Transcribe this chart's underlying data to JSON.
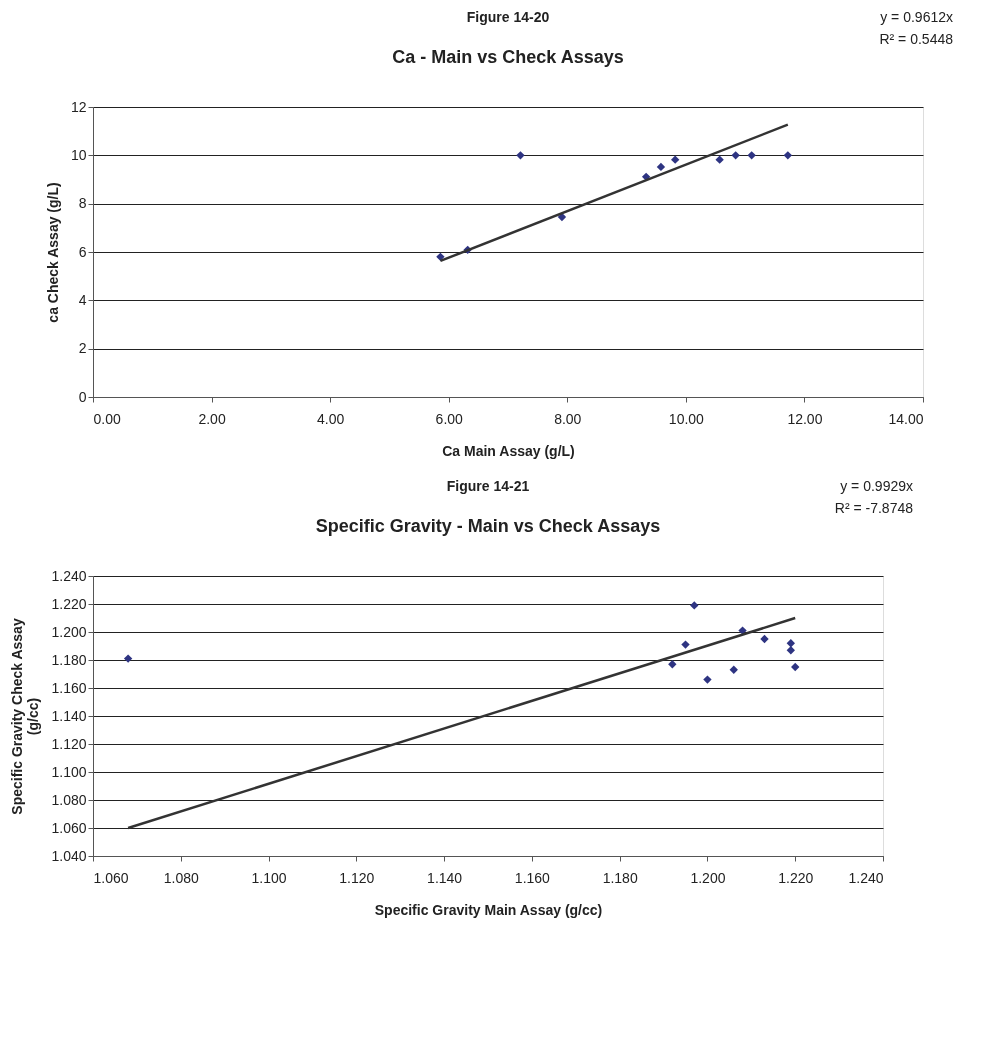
{
  "chart_data": [
    {
      "type": "scatter",
      "title": "Ca - Main vs Check Assays",
      "xlabel": "Ca Main Assay (g/L)",
      "ylabel": "ca Check Assay (g/L)",
      "annotations": [
        "Figure 14-20",
        "y = 0.9612x",
        "R² = 0.5448"
      ],
      "series": [
        {
          "marker": "diamond",
          "color": "#2e3482",
          "x": [
            7.21,
            9.33,
            9.58,
            9.82,
            10.57,
            10.84,
            11.11,
            11.72,
            5.86,
            6.32,
            7.91
          ],
          "values": [
            10.0,
            9.11,
            9.52,
            9.82,
            9.82,
            10.0,
            10.0,
            10.0,
            5.8,
            6.09,
            7.45
          ]
        },
        {
          "type": "line",
          "color": "#333333",
          "x": [
            5.86,
            11.72
          ],
          "values": [
            5.63,
            11.27
          ]
        }
      ],
      "xlim": [
        0,
        14
      ],
      "ylim": [
        0,
        12
      ],
      "xticks": [
        {
          "value": 0,
          "label": "0.00"
        },
        {
          "value": 2,
          "label": "2.00"
        },
        {
          "value": 4,
          "label": "4.00"
        },
        {
          "value": 6,
          "label": "6.00"
        },
        {
          "value": 8,
          "label": "8.00"
        },
        {
          "value": 10,
          "label": "10.00"
        },
        {
          "value": 12,
          "label": "12.00"
        },
        {
          "value": 14,
          "label": "14.00"
        }
      ],
      "yticks": [
        0,
        2,
        4,
        6,
        8,
        10,
        12
      ],
      "grid": "y"
    },
    {
      "type": "scatter",
      "title": "Specific Gravity - Main vs Check Assays",
      "xlabel": "Specific Gravity Main Assay (g/cc)",
      "ylabel": "Specific Gravity Check Assay (g/cc)",
      "annotations": [
        "Figure 14-21",
        "y = 0.9929x",
        "R² = -7.8748"
      ],
      "series": [
        {
          "marker": "diamond",
          "color": "#2e3482",
          "x": [
            1.068,
            1.197,
            1.208,
            1.195,
            1.213,
            1.219,
            1.219,
            1.192,
            1.206,
            1.2,
            1.22
          ],
          "values": [
            1.181,
            1.219,
            1.201,
            1.191,
            1.195,
            1.192,
            1.187,
            1.177,
            1.173,
            1.166,
            1.175
          ]
        },
        {
          "type": "line",
          "color": "#333333",
          "x": [
            1.068,
            1.22
          ],
          "values": [
            1.06,
            1.21
          ]
        }
      ],
      "xlim": [
        1.06,
        1.24
      ],
      "ylim": [
        1.04,
        1.24
      ],
      "xticks": [
        {
          "value": 1.06,
          "label": "1.060"
        },
        {
          "value": 1.08,
          "label": "1.080"
        },
        {
          "value": 1.1,
          "label": "1.100"
        },
        {
          "value": 1.12,
          "label": "1.120"
        },
        {
          "value": 1.14,
          "label": "1.140"
        },
        {
          "value": 1.16,
          "label": "1.160"
        },
        {
          "value": 1.18,
          "label": "1.180"
        },
        {
          "value": 1.2,
          "label": "1.200"
        },
        {
          "value": 1.22,
          "label": "1.220"
        },
        {
          "value": 1.24,
          "label": "1.240"
        }
      ],
      "yticks": [
        {
          "value": 1.04,
          "label": "1.040"
        },
        {
          "value": 1.06,
          "label": "1.060"
        },
        {
          "value": 1.08,
          "label": "1.080"
        },
        {
          "value": 1.1,
          "label": "1.100"
        },
        {
          "value": 1.12,
          "label": "1.120"
        },
        {
          "value": 1.14,
          "label": "1.140"
        },
        {
          "value": 1.16,
          "label": "1.160"
        },
        {
          "value": 1.18,
          "label": "1.180"
        },
        {
          "value": 1.2,
          "label": "1.200"
        },
        {
          "value": 1.22,
          "label": "1.220"
        },
        {
          "value": 1.24,
          "label": "1.240"
        }
      ],
      "grid": "y"
    }
  ]
}
